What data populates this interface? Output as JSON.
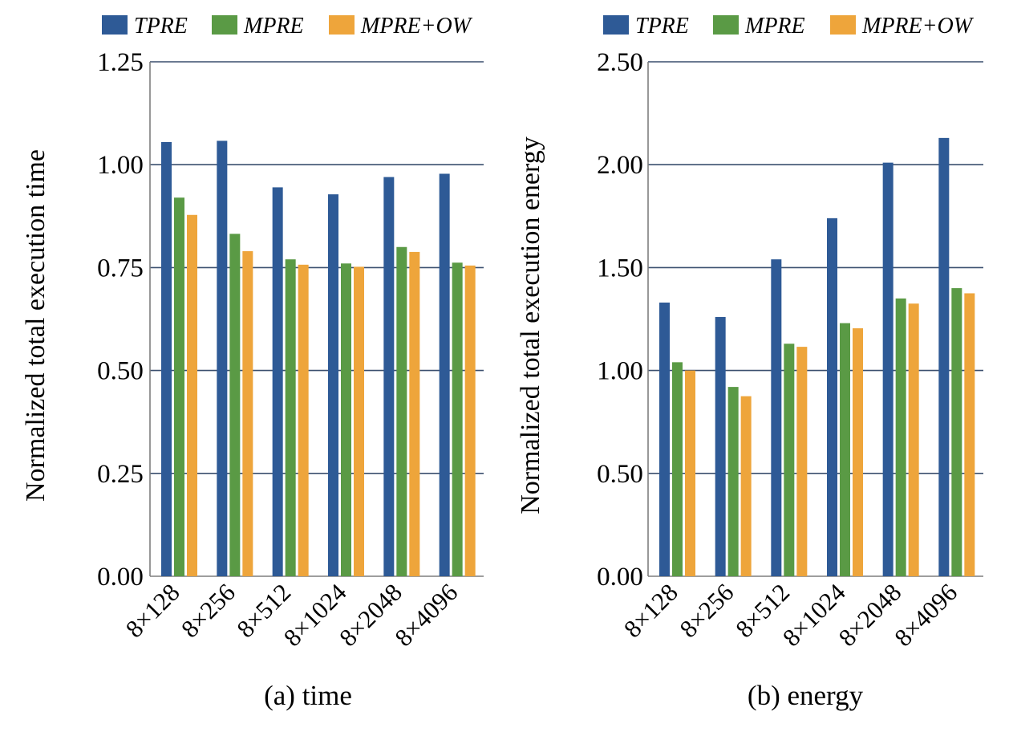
{
  "colors": {
    "TPRE": "#2E5A96",
    "MPRE": "#5A9A45",
    "MPRE+OW": "#EEA53B",
    "gridline": "#3A4F6E",
    "axis": "#7F7F7F"
  },
  "chart_data": [
    {
      "type": "bar",
      "caption": "(a) time",
      "ylabel": "Normalized total execution time",
      "xlabel": "",
      "categories": [
        "8×128",
        "8×256",
        "8×512",
        "8×1024",
        "8×2048",
        "8×4096"
      ],
      "ylim": [
        0,
        1.25
      ],
      "yticks": [
        "0.00",
        "0.25",
        "0.50",
        "0.75",
        "1.00",
        "1.25"
      ],
      "grid": true,
      "legend_position": "top",
      "series": [
        {
          "name": "TPRE",
          "values": [
            1.055,
            1.058,
            0.945,
            0.928,
            0.97,
            0.978
          ]
        },
        {
          "name": "MPRE",
          "values": [
            0.92,
            0.832,
            0.77,
            0.76,
            0.8,
            0.762
          ]
        },
        {
          "name": "MPRE+OW",
          "values": [
            0.878,
            0.79,
            0.757,
            0.752,
            0.788,
            0.755
          ]
        }
      ]
    },
    {
      "type": "bar",
      "caption": "(b) energy",
      "ylabel": "Normalized total execution energy",
      "xlabel": "",
      "categories": [
        "8×128",
        "8×256",
        "8×512",
        "8×1024",
        "8×2048",
        "8×4096"
      ],
      "ylim": [
        0,
        2.5
      ],
      "yticks": [
        "0.00",
        "0.50",
        "1.00",
        "1.50",
        "2.00",
        "2.50"
      ],
      "grid": true,
      "legend_position": "top",
      "series": [
        {
          "name": "TPRE",
          "values": [
            1.33,
            1.26,
            1.54,
            1.74,
            2.01,
            2.13
          ]
        },
        {
          "name": "MPRE",
          "values": [
            1.04,
            0.92,
            1.13,
            1.23,
            1.35,
            1.4
          ]
        },
        {
          "name": "MPRE+OW",
          "values": [
            1.0,
            0.875,
            1.115,
            1.205,
            1.325,
            1.375
          ]
        }
      ]
    }
  ]
}
